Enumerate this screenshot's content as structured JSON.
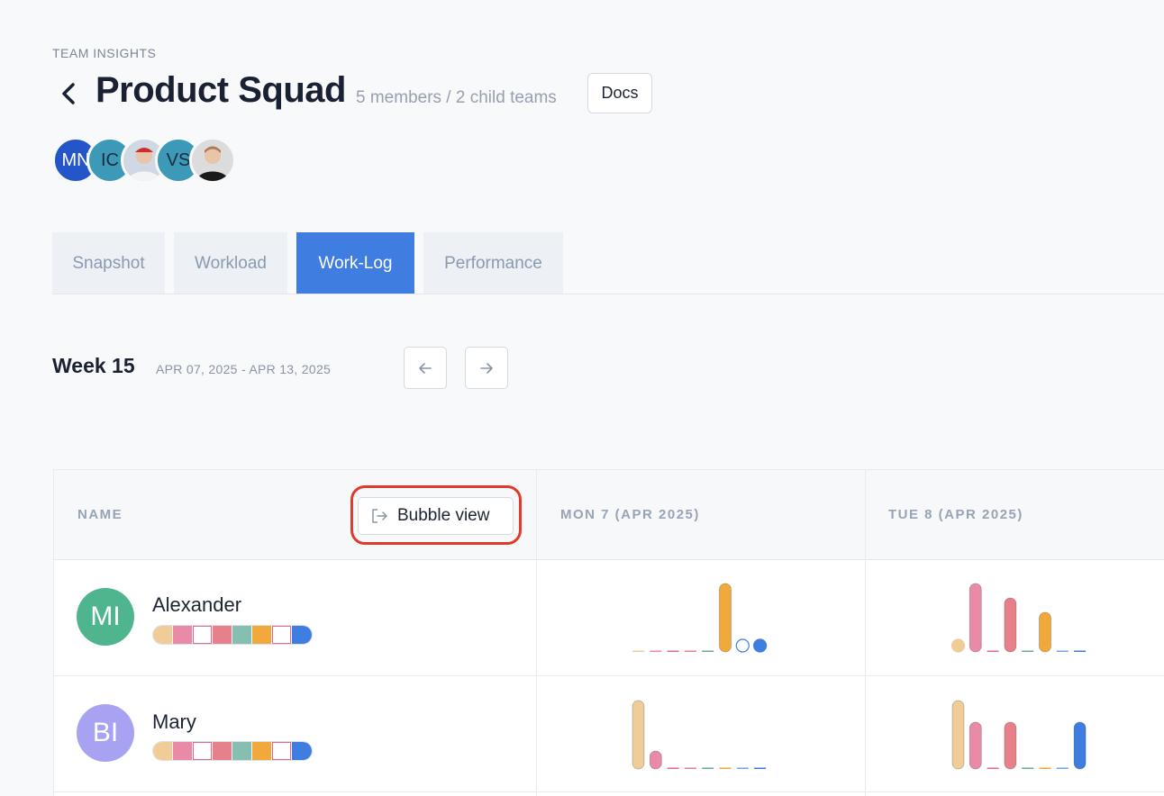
{
  "header": {
    "eyebrow": "TEAM INSIGHTS",
    "title": "Product Squad",
    "subtitle": "5 members / 2 child teams",
    "docs_label": "Docs"
  },
  "members": [
    {
      "initials": "MN",
      "color": "#2456c9",
      "photo": false
    },
    {
      "initials": "IC",
      "color": "#3c9ab8",
      "photo": false
    },
    {
      "initials": "",
      "color": "#cfd8e3",
      "photo": true
    },
    {
      "initials": "VS",
      "color": "#3c9ab8",
      "photo": false
    },
    {
      "initials": "",
      "color": "#dcdcdc",
      "photo": true
    }
  ],
  "tabs": [
    {
      "label": "Snapshot",
      "active": false
    },
    {
      "label": "Workload",
      "active": false
    },
    {
      "label": "Work-Log",
      "active": true
    },
    {
      "label": "Performance",
      "active": false
    }
  ],
  "week": {
    "title": "Week 15",
    "range": "APR 07, 2025 - APR 13, 2025"
  },
  "table": {
    "name_header": "NAME",
    "bubble_view_label": "Bubble view",
    "day_headers": [
      "MON 7 (APR 2025)",
      "TUE 8 (APR 2025)"
    ]
  },
  "legend_colors": [
    "#f0cd98",
    "#e98aa6",
    "#ffffff",
    "#e6808a",
    "#86bfb2",
    "#f2a93b",
    "#ffffff",
    "#3f7ee0"
  ],
  "rows": [
    {
      "name": "Alexander",
      "initials": "MI",
      "avatar_color": "#4fb58f",
      "days": [
        [
          0,
          0,
          0,
          0,
          0,
          0.95,
          0.08,
          0.08
        ],
        [
          0.08,
          0.95,
          0,
          0.75,
          0,
          0.55,
          0,
          0
        ]
      ]
    },
    {
      "name": "Mary",
      "initials": "BI",
      "avatar_color": "#a7a2f1",
      "days": [
        [
          0.95,
          0.25,
          0,
          0,
          0,
          0,
          0,
          0
        ],
        [
          0.95,
          0.65,
          0,
          0.65,
          0,
          0,
          0,
          0.65
        ]
      ]
    }
  ],
  "series_colors": [
    "#f0cd98",
    "#e98aa6",
    "#e06a8c",
    "#e6808a",
    "#6aa890",
    "#f2a93b",
    "#6fa6e6",
    "#3f7ee0"
  ],
  "empty_marker_series": [
    6
  ]
}
